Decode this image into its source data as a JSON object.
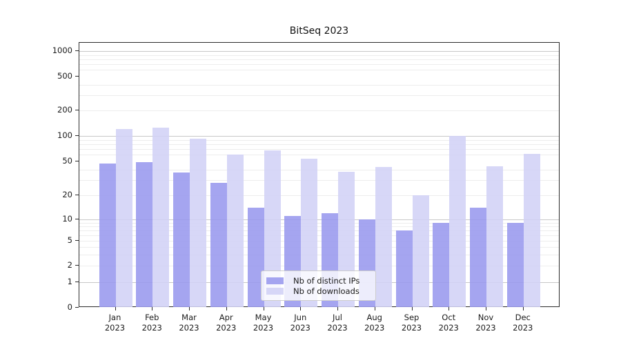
{
  "chart_data": {
    "type": "bar",
    "title": "BitSeq 2023",
    "categories": [
      "Jan 2023",
      "Feb 2023",
      "Mar 2023",
      "Apr 2023",
      "May 2023",
      "Jun 2023",
      "Jul 2023",
      "Aug 2023",
      "Sep 2023",
      "Oct 2023",
      "Nov 2023",
      "Dec 2023"
    ],
    "x_tick_months": [
      "Jan",
      "Feb",
      "Mar",
      "Apr",
      "May",
      "Jun",
      "Jul",
      "Aug",
      "Sep",
      "Oct",
      "Nov",
      "Dec"
    ],
    "x_tick_year": "2023",
    "series": [
      {
        "name": "Nb of distinct IPs",
        "color": "#9898ee",
        "values": [
          47,
          49,
          37,
          28,
          14,
          11,
          12,
          10,
          7,
          9,
          14,
          9
        ]
      },
      {
        "name": "Nb of downloads",
        "color": "#d2d2f6",
        "values": [
          120,
          125,
          93,
          60,
          67,
          54,
          38,
          43,
          20,
          100,
          44,
          62
        ]
      }
    ],
    "y_axis": {
      "scale": "symlog",
      "ticks": [
        0,
        1,
        2,
        5,
        10,
        20,
        50,
        100,
        200,
        500,
        1000
      ],
      "major_gridlines": [
        1,
        10,
        100,
        1000
      ],
      "minor_gridlines": [
        2,
        3,
        4,
        5,
        6,
        7,
        8,
        9,
        20,
        30,
        40,
        60,
        70,
        80,
        90,
        200,
        300,
        400,
        600,
        700,
        800,
        900
      ],
      "range": [
        0,
        1000
      ]
    },
    "legend": {
      "position": "lower center",
      "entries": [
        "Nb of distinct IPs",
        "Nb of downloads"
      ]
    },
    "grid": "horizontal"
  },
  "colors": {
    "major_grid": "#c7c7c7",
    "minor_grid": "#ededed",
    "spine": "#2a2a2a",
    "text": "#1a1a1a",
    "background": "#ffffff"
  }
}
